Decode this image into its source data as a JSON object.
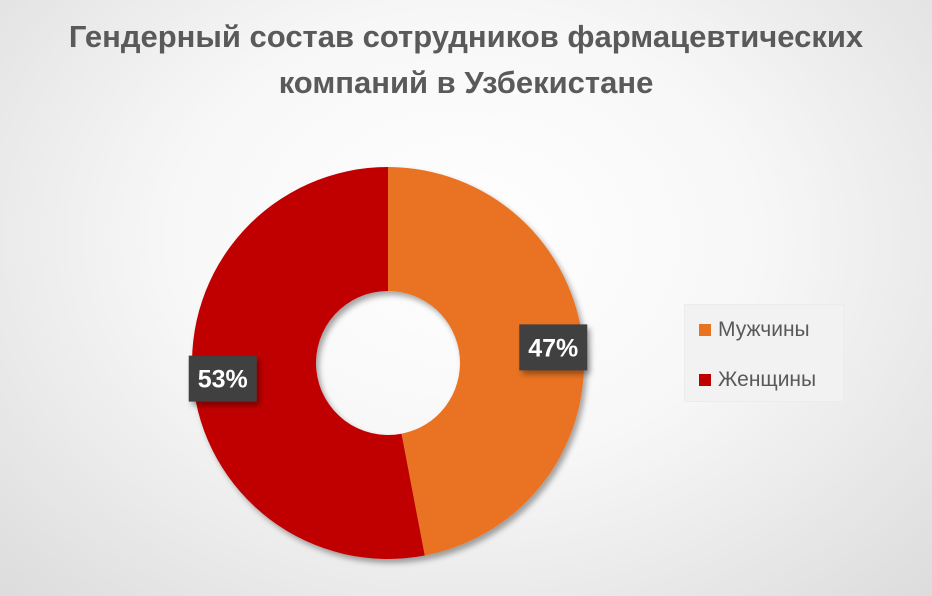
{
  "chart_data": {
    "type": "pie",
    "variant": "donut",
    "title": "Гендерный состав сотрудников фармацевтических компаний в Узбекистане",
    "title_lines": [
      "Гендерный состав сотрудников фармацевтических",
      "компаний в Узбекистане"
    ],
    "slices": [
      {
        "label": "Мужчины",
        "value": 47,
        "value_label": "47%",
        "color": "#E97321"
      },
      {
        "label": "Женщины",
        "value": 53,
        "value_label": "53%",
        "color": "#C00000"
      }
    ],
    "legend": {
      "position": "right"
    }
  }
}
